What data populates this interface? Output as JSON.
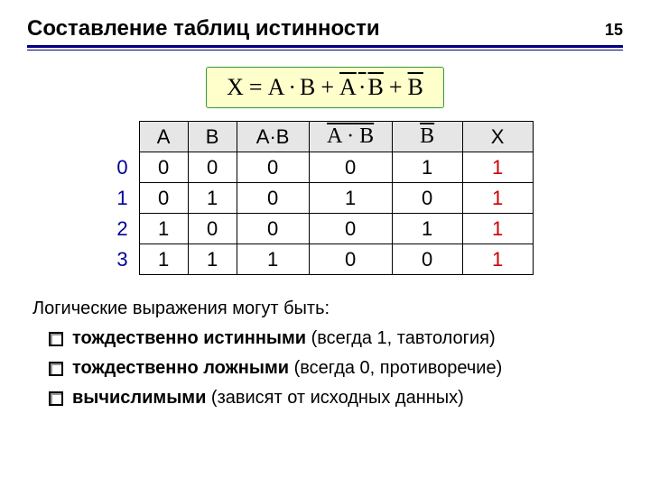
{
  "page_number": "15",
  "title": "Составление таблиц истинности",
  "formula": {
    "lhs": "X",
    "t1a": "A",
    "t1b": "B",
    "t2a": "A",
    "t2b": "B",
    "t3": "B"
  },
  "colors": {
    "rule": "#000080",
    "row_index": "#000099",
    "formula_bg": "#ffffcc",
    "formula_border": "#339933",
    "header_bg": "#e6e6e6",
    "result_text": "#cc0000",
    "text": "#000000"
  },
  "table": {
    "headers": {
      "a": "A",
      "b": "B",
      "ab": "A·B",
      "notab_a": "A",
      "notab_b": "B",
      "notb": "B",
      "x": "X"
    },
    "row_indices": [
      "0",
      "1",
      "2",
      "3"
    ],
    "rows": [
      {
        "a": "0",
        "b": "0",
        "ab": "0",
        "notab": "0",
        "notb": "1",
        "x": "1"
      },
      {
        "a": "0",
        "b": "1",
        "ab": "0",
        "notab": "1",
        "notb": "0",
        "x": "1"
      },
      {
        "a": "1",
        "b": "0",
        "ab": "0",
        "notab": "0",
        "notb": "1",
        "x": "1"
      },
      {
        "a": "1",
        "b": "1",
        "ab": "1",
        "notab": "0",
        "notb": "0",
        "x": "1"
      }
    ]
  },
  "notes": {
    "lead": "Логические выражения могут быть:",
    "b1_bold": "тождественно истинными",
    "b1_rest": " (всегда 1, тавтология)",
    "b2_bold": "тождественно ложными",
    "b2_rest": " (всегда 0, противоречие)",
    "b3_bold": "вычислимыми",
    "b3_rest": " (зависят от исходных данных)"
  }
}
